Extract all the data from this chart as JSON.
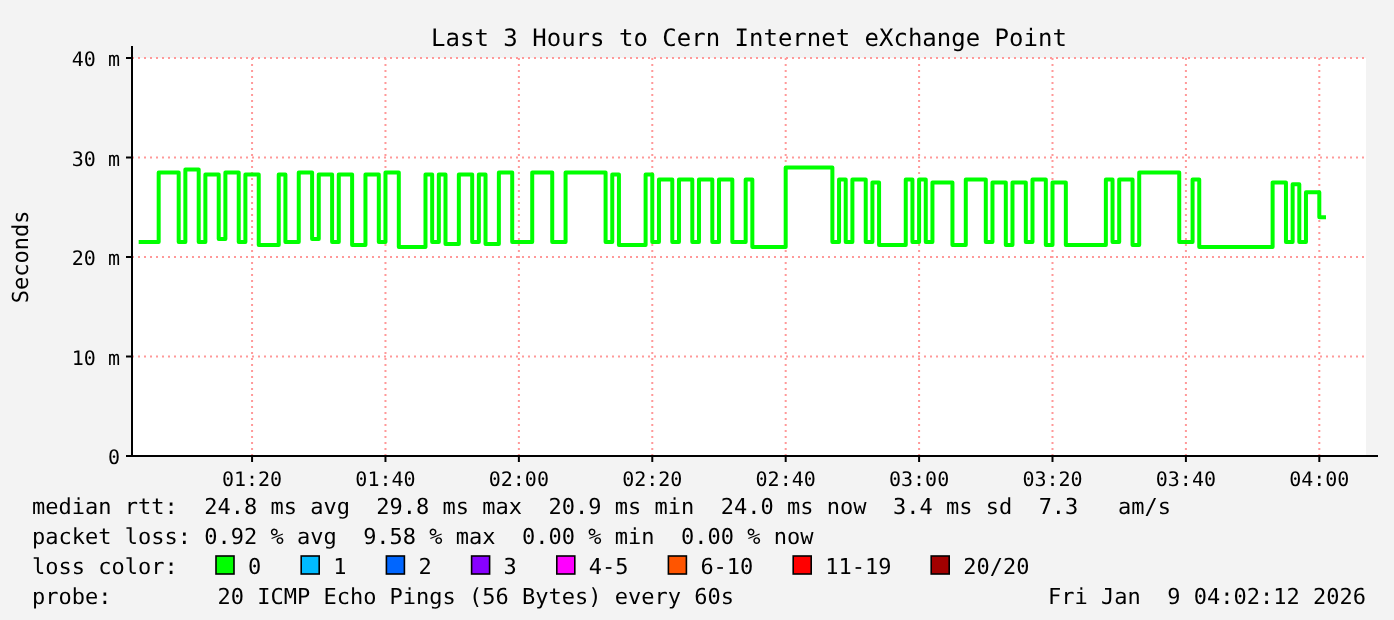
{
  "chart_data": {
    "type": "step",
    "title": "Last 3 Hours to Cern Internet eXchange Point",
    "ylabel": "Seconds",
    "xlim": [
      "2026-01-09T01:02",
      "2026-01-09T04:07"
    ],
    "xticks": [
      {
        "value": "2026-01-09T01:20",
        "label": "01:20"
      },
      {
        "value": "2026-01-09T01:40",
        "label": "01:40"
      },
      {
        "value": "2026-01-09T02:00",
        "label": "02:00"
      },
      {
        "value": "2026-01-09T02:20",
        "label": "02:20"
      },
      {
        "value": "2026-01-09T02:40",
        "label": "02:40"
      },
      {
        "value": "2026-01-09T03:00",
        "label": "03:00"
      },
      {
        "value": "2026-01-09T03:20",
        "label": "03:20"
      },
      {
        "value": "2026-01-09T03:40",
        "label": "03:40"
      },
      {
        "value": "2026-01-09T04:00",
        "label": "04:00"
      }
    ],
    "ylim": [
      0,
      40
    ],
    "yticks": [
      0,
      {
        "value": 10,
        "label": "10 m"
      },
      {
        "value": 20,
        "label": "20 m"
      },
      {
        "value": 30,
        "label": "30 m"
      },
      {
        "value": 40,
        "label": "40 m"
      }
    ],
    "grid": true,
    "legend": "bottom",
    "legend_title": "loss color:",
    "line_style": "solid",
    "x": [
      "2026-01-09T01:03",
      "2026-01-09T01:06",
      "2026-01-09T01:09",
      "2026-01-09T01:10",
      "2026-01-09T01:12",
      "2026-01-09T01:13",
      "2026-01-09T01:15",
      "2026-01-09T01:16",
      "2026-01-09T01:18",
      "2026-01-09T01:19",
      "2026-01-09T01:21",
      "2026-01-09T01:24",
      "2026-01-09T01:25",
      "2026-01-09T01:27",
      "2026-01-09T01:29",
      "2026-01-09T01:30",
      "2026-01-09T01:32",
      "2026-01-09T01:33",
      "2026-01-09T01:35",
      "2026-01-09T01:37",
      "2026-01-09T01:39",
      "2026-01-09T01:40",
      "2026-01-09T01:42",
      "2026-01-09T01:46",
      "2026-01-09T01:47",
      "2026-01-09T01:48",
      "2026-01-09T01:49",
      "2026-01-09T01:51",
      "2026-01-09T01:53",
      "2026-01-09T01:54",
      "2026-01-09T01:55",
      "2026-01-09T01:57",
      "2026-01-09T01:59",
      "2026-01-09T02:02",
      "2026-01-09T02:05",
      "2026-01-09T02:07",
      "2026-01-09T02:13",
      "2026-01-09T02:14",
      "2026-01-09T02:15",
      "2026-01-09T02:19",
      "2026-01-09T02:20",
      "2026-01-09T02:21",
      "2026-01-09T02:23",
      "2026-01-09T02:24",
      "2026-01-09T02:26",
      "2026-01-09T02:27",
      "2026-01-09T02:29",
      "2026-01-09T02:30",
      "2026-01-09T02:32",
      "2026-01-09T02:34",
      "2026-01-09T02:35",
      "2026-01-09T02:40",
      "2026-01-09T02:47",
      "2026-01-09T02:48",
      "2026-01-09T02:49",
      "2026-01-09T02:50",
      "2026-01-09T02:52",
      "2026-01-09T02:53",
      "2026-01-09T02:54",
      "2026-01-09T02:58",
      "2026-01-09T02:59",
      "2026-01-09T03:00",
      "2026-01-09T03:01",
      "2026-01-09T03:02",
      "2026-01-09T03:05",
      "2026-01-09T03:07",
      "2026-01-09T03:10",
      "2026-01-09T03:11",
      "2026-01-09T03:13",
      "2026-01-09T03:14",
      "2026-01-09T03:16",
      "2026-01-09T03:17",
      "2026-01-09T03:19",
      "2026-01-09T03:20",
      "2026-01-09T03:22",
      "2026-01-09T03:28",
      "2026-01-09T03:29",
      "2026-01-09T03:30",
      "2026-01-09T03:32",
      "2026-01-09T03:33",
      "2026-01-09T03:39",
      "2026-01-09T03:41",
      "2026-01-09T03:42",
      "2026-01-09T03:53",
      "2026-01-09T03:55",
      "2026-01-09T03:56",
      "2026-01-09T03:57",
      "2026-01-09T03:58",
      "2026-01-09T04:00",
      "2026-01-09T04:01"
    ],
    "series": [
      {
        "name": "0",
        "color": "#00ff00",
        "values": [
          21.5,
          28.5,
          21.5,
          28.8,
          21.5,
          28.3,
          21.8,
          28.5,
          21.5,
          28.3,
          21.2,
          28.3,
          21.5,
          28.5,
          21.8,
          28.3,
          21.5,
          28.3,
          21.2,
          28.3,
          21.5,
          28.5,
          21,
          28.3,
          21.5,
          28.3,
          21.3,
          28.3,
          21.5,
          28.3,
          21.3,
          28.5,
          21.5,
          28.5,
          21.5,
          28.5,
          21.5,
          28.3,
          21.2,
          28.3,
          21.5,
          27.8,
          21.5,
          27.8,
          21.5,
          27.8,
          21.5,
          27.8,
          21.5,
          27.8,
          21,
          29,
          21.5,
          27.8,
          21.5,
          27.8,
          21.5,
          27.5,
          21.2,
          27.8,
          21.5,
          27.8,
          21.5,
          27.5,
          21.2,
          27.8,
          21.5,
          27.5,
          21.2,
          27.5,
          21.5,
          27.8,
          21.2,
          27.5,
          21.2,
          27.8,
          21.5,
          27.8,
          21.2,
          28.5,
          21.5,
          27.8,
          21,
          27.5,
          21.5,
          27.3,
          21.5,
          26.5,
          24,
          24
        ]
      },
      {
        "name": "1",
        "color": "#00bbff",
        "values": [
          null,
          null,
          null,
          null,
          null,
          null,
          null,
          null,
          null,
          null,
          null,
          null,
          null,
          null,
          null,
          null,
          null,
          null,
          null,
          null,
          null,
          null,
          null,
          null,
          null,
          null,
          null,
          null,
          null,
          null,
          null,
          null,
          null,
          null,
          null,
          null,
          null,
          null,
          null,
          null,
          null,
          null,
          null,
          null,
          null,
          null,
          null,
          null,
          null,
          null,
          null,
          null,
          null,
          null,
          null,
          null,
          null,
          null,
          null,
          null,
          null,
          null,
          null,
          null,
          null,
          null,
          null,
          null,
          null,
          null,
          null,
          null,
          null,
          null,
          null,
          null,
          null,
          null,
          null,
          null,
          null,
          null,
          null,
          null,
          null,
          null,
          null,
          null,
          null,
          null
        ]
      },
      {
        "name": "2",
        "color": "#0066ff",
        "values": [
          null,
          null,
          null,
          null,
          null,
          null,
          null,
          null,
          null,
          null,
          null,
          null,
          null,
          null,
          null,
          null,
          null,
          null,
          null,
          null,
          null,
          null,
          null,
          null,
          null,
          null,
          null,
          null,
          null,
          null,
          null,
          null,
          null,
          null,
          null,
          null,
          null,
          null,
          null,
          null,
          null,
          null,
          null,
          null,
          null,
          null,
          null,
          null,
          null,
          null,
          null,
          null,
          null,
          null,
          null,
          null,
          null,
          null,
          null,
          null,
          null,
          null,
          null,
          null,
          null,
          null,
          null,
          null,
          null,
          null,
          null,
          null,
          null,
          null,
          null,
          null,
          null,
          null,
          null,
          null,
          null,
          null,
          null,
          null,
          null,
          null,
          null,
          null,
          null,
          null
        ]
      },
      {
        "name": "3",
        "color": "#8800ff",
        "values": [
          null,
          null,
          null,
          null,
          null,
          null,
          null,
          null,
          null,
          null,
          null,
          null,
          null,
          null,
          null,
          null,
          null,
          null,
          null,
          null,
          null,
          null,
          null,
          null,
          null,
          null,
          null,
          null,
          null,
          null,
          null,
          null,
          null,
          null,
          null,
          null,
          null,
          null,
          null,
          null,
          null,
          null,
          null,
          null,
          null,
          null,
          null,
          null,
          null,
          null,
          null,
          null,
          null,
          null,
          null,
          null,
          null,
          null,
          null,
          null,
          null,
          null,
          null,
          null,
          null,
          null,
          null,
          null,
          null,
          null,
          null,
          null,
          null,
          null,
          null,
          null,
          null,
          null,
          null,
          null,
          null,
          null,
          null,
          null,
          null,
          null,
          null,
          null,
          null,
          null
        ]
      },
      {
        "name": "4-5",
        "color": "#ff00ff",
        "values": [
          null,
          null,
          null,
          null,
          null,
          null,
          null,
          null,
          null,
          null,
          null,
          null,
          null,
          null,
          null,
          null,
          null,
          null,
          null,
          null,
          null,
          null,
          null,
          null,
          null,
          null,
          null,
          null,
          null,
          null,
          null,
          null,
          null,
          null,
          null,
          null,
          null,
          null,
          null,
          null,
          null,
          null,
          null,
          null,
          null,
          null,
          null,
          null,
          null,
          null,
          null,
          null,
          null,
          null,
          null,
          null,
          null,
          null,
          null,
          null,
          null,
          null,
          null,
          null,
          null,
          null,
          null,
          null,
          null,
          null,
          null,
          null,
          null,
          null,
          null,
          null,
          null,
          null,
          null,
          null,
          null,
          null,
          null,
          null,
          null,
          null,
          null,
          null,
          null,
          null
        ]
      },
      {
        "name": "6-10",
        "color": "#ff5500",
        "values": [
          null,
          null,
          null,
          null,
          null,
          null,
          null,
          null,
          null,
          null,
          null,
          null,
          null,
          null,
          null,
          null,
          null,
          null,
          null,
          null,
          null,
          null,
          null,
          null,
          null,
          null,
          null,
          null,
          null,
          null,
          null,
          null,
          null,
          null,
          null,
          null,
          null,
          null,
          null,
          null,
          null,
          null,
          null,
          null,
          null,
          null,
          null,
          null,
          null,
          null,
          null,
          null,
          null,
          null,
          null,
          null,
          null,
          null,
          null,
          null,
          null,
          null,
          null,
          null,
          null,
          null,
          null,
          null,
          null,
          null,
          null,
          null,
          null,
          null,
          null,
          null,
          null,
          null,
          null,
          null,
          null,
          null,
          null,
          null,
          null,
          null,
          null,
          null,
          null,
          null
        ]
      },
      {
        "name": "11-19",
        "color": "#ff0000",
        "values": [
          null,
          null,
          null,
          null,
          null,
          null,
          null,
          null,
          null,
          null,
          null,
          null,
          null,
          null,
          null,
          null,
          null,
          null,
          null,
          null,
          null,
          null,
          null,
          null,
          null,
          null,
          null,
          null,
          null,
          null,
          null,
          null,
          null,
          null,
          null,
          null,
          null,
          null,
          null,
          null,
          null,
          null,
          null,
          null,
          null,
          null,
          null,
          null,
          null,
          null,
          null,
          null,
          null,
          null,
          null,
          null,
          null,
          null,
          null,
          null,
          null,
          null,
          null,
          null,
          null,
          null,
          null,
          null,
          null,
          null,
          null,
          null,
          null,
          null,
          null,
          null,
          null,
          null,
          null,
          null,
          null,
          null,
          null,
          null,
          null,
          null,
          null,
          null,
          null,
          null
        ]
      },
      {
        "name": "20/20",
        "color": "#a10000",
        "values": [
          null,
          null,
          null,
          null,
          null,
          null,
          null,
          null,
          null,
          null,
          null,
          null,
          null,
          null,
          null,
          null,
          null,
          null,
          null,
          null,
          null,
          null,
          null,
          null,
          null,
          null,
          null,
          null,
          null,
          null,
          null,
          null,
          null,
          null,
          null,
          null,
          null,
          null,
          null,
          null,
          null,
          null,
          null,
          null,
          null,
          null,
          null,
          null,
          null,
          null,
          null,
          null,
          null,
          null,
          null,
          null,
          null,
          null,
          null,
          null,
          null,
          null,
          null,
          null,
          null,
          null,
          null,
          null,
          null,
          null,
          null,
          null,
          null,
          null,
          null,
          null,
          null,
          null,
          null,
          null,
          null,
          null,
          null,
          null,
          null,
          null,
          null,
          null,
          null,
          null
        ]
      }
    ],
    "annotations": [
      "median rtt:  24.8 ms avg  29.8 ms max  20.9 ms min  24.0 ms now  3.4 ms sd  7.3   am/s",
      "packet loss: 0.92 % avg  9.58 % max  0.00 % min  0.00 % now",
      "probe:        20 ICMP Echo Pings (56 Bytes) every 60s",
      "Fri Jan  9 04:02:12 2026"
    ]
  }
}
